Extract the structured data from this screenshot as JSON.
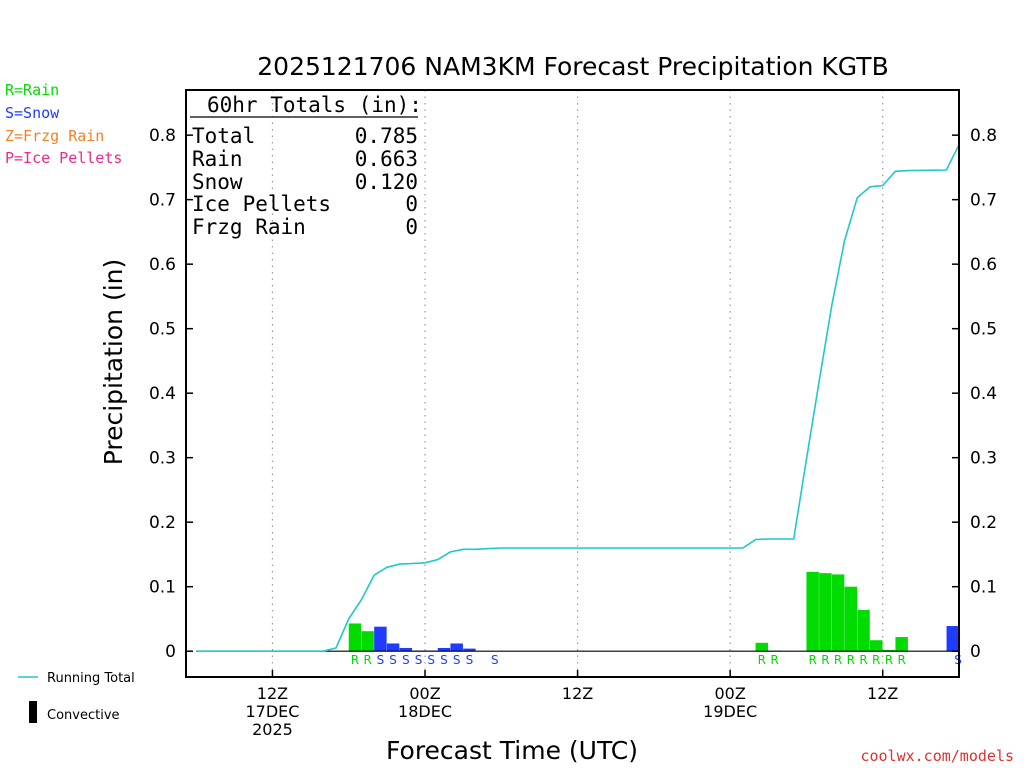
{
  "chart_data": {
    "type": "bar",
    "title": "2025121706 NAM3KM Forecast Precipitation KGTB",
    "xlabel": "Forecast Time (UTC)",
    "ylabel": "Precipitation (in)",
    "ylim": [
      -0.04,
      0.87
    ],
    "y_ticks": [
      "0.8",
      "0.7",
      "0.6",
      "0.5",
      "0.4",
      "0.3",
      "0.2",
      "0.1",
      "0"
    ],
    "y_tick_values": [
      0.8,
      0.7,
      0.6,
      0.5,
      0.4,
      0.3,
      0.2,
      0.1,
      0
    ],
    "x_unit": "forecast hour",
    "xlim": [
      -0.8,
      60
    ],
    "x_ticks": [
      {
        "hour": 6,
        "lines": [
          "12Z",
          "17DEC",
          "2025"
        ]
      },
      {
        "hour": 18,
        "lines": [
          "00Z",
          "18DEC"
        ]
      },
      {
        "hour": 30,
        "lines": [
          "12Z"
        ]
      },
      {
        "hour": 42,
        "lines": [
          "00Z",
          "19DEC"
        ]
      },
      {
        "hour": 54,
        "lines": [
          "12Z"
        ]
      }
    ],
    "legend_types": [
      {
        "code": "R",
        "label": "R=Rain",
        "color": "#00dc00"
      },
      {
        "code": "S",
        "label": "S=Snow",
        "color": "#1e3cff"
      },
      {
        "code": "Z",
        "label": "Z=Frzg Rain",
        "color": "#f08228"
      },
      {
        "code": "P",
        "label": "P=Ice Pellets",
        "color": "#f0288c"
      }
    ],
    "legend_lines": {
      "running_total": "Running Total",
      "convective": "Convective"
    },
    "running_total_color": "#20c8c8",
    "convective_color": "#000000",
    "totals_box": {
      "title": "60hr Totals (in):",
      "rows": [
        {
          "label": "Total",
          "value": "0.785"
        },
        {
          "label": "Rain",
          "value": "0.663"
        },
        {
          "label": "Snow",
          "value": "0.120"
        },
        {
          "label": "Ice Pellets",
          "value": "0"
        },
        {
          "label": "Frzg Rain",
          "value": "0"
        }
      ]
    },
    "bars": [
      {
        "hour": 12,
        "type": "R",
        "value": 0.043
      },
      {
        "hour": 13,
        "type": "R",
        "value": 0.031
      },
      {
        "hour": 14,
        "type": "S",
        "value": 0.038
      },
      {
        "hour": 15,
        "type": "S",
        "value": 0.012
      },
      {
        "hour": 16,
        "type": "S",
        "value": 0.005
      },
      {
        "hour": 17,
        "type": "S",
        "value": 0.001
      },
      {
        "hour": 18,
        "type": "S",
        "value": 0.001
      },
      {
        "hour": 19,
        "type": "S",
        "value": 0.005
      },
      {
        "hour": 20,
        "type": "S",
        "value": 0.012
      },
      {
        "hour": 21,
        "type": "S",
        "value": 0.004
      },
      {
        "hour": 23,
        "type": "S",
        "value": 0.0
      },
      {
        "hour": 44,
        "type": "R",
        "value": 0.013
      },
      {
        "hour": 45,
        "type": "R",
        "value": 0.001
      },
      {
        "hour": 48,
        "type": "R",
        "value": 0.123
      },
      {
        "hour": 49,
        "type": "R",
        "value": 0.121
      },
      {
        "hour": 50,
        "type": "R",
        "value": 0.119
      },
      {
        "hour": 51,
        "type": "R",
        "value": 0.1
      },
      {
        "hour": 52,
        "type": "R",
        "value": 0.064
      },
      {
        "hour": 53,
        "type": "R",
        "value": 0.017
      },
      {
        "hour": 54,
        "type": "R",
        "value": 0.002
      },
      {
        "hour": 55,
        "type": "R",
        "value": 0.022
      },
      {
        "hour": 60,
        "type": "S",
        "value": 0.039
      }
    ],
    "running_total": [
      {
        "hour": 0,
        "value": 0.0
      },
      {
        "hour": 10,
        "value": 0.0
      },
      {
        "hour": 11,
        "value": 0.005
      },
      {
        "hour": 12,
        "value": 0.05
      },
      {
        "hour": 13,
        "value": 0.08
      },
      {
        "hour": 14,
        "value": 0.118
      },
      {
        "hour": 15,
        "value": 0.13
      },
      {
        "hour": 16,
        "value": 0.135
      },
      {
        "hour": 17,
        "value": 0.136
      },
      {
        "hour": 18,
        "value": 0.137
      },
      {
        "hour": 19,
        "value": 0.142
      },
      {
        "hour": 20,
        "value": 0.154
      },
      {
        "hour": 21,
        "value": 0.158
      },
      {
        "hour": 22,
        "value": 0.158
      },
      {
        "hour": 23,
        "value": 0.159
      },
      {
        "hour": 24,
        "value": 0.16
      },
      {
        "hour": 42,
        "value": 0.16
      },
      {
        "hour": 43,
        "value": 0.16
      },
      {
        "hour": 44,
        "value": 0.173
      },
      {
        "hour": 45,
        "value": 0.174
      },
      {
        "hour": 47,
        "value": 0.174
      },
      {
        "hour": 48,
        "value": 0.297
      },
      {
        "hour": 49,
        "value": 0.418
      },
      {
        "hour": 50,
        "value": 0.537
      },
      {
        "hour": 51,
        "value": 0.637
      },
      {
        "hour": 52,
        "value": 0.703
      },
      {
        "hour": 53,
        "value": 0.72
      },
      {
        "hour": 54,
        "value": 0.722
      },
      {
        "hour": 55,
        "value": 0.744
      },
      {
        "hour": 56,
        "value": 0.745
      },
      {
        "hour": 59,
        "value": 0.746
      },
      {
        "hour": 60,
        "value": 0.785
      }
    ]
  },
  "credit": "coolwx.com/models"
}
